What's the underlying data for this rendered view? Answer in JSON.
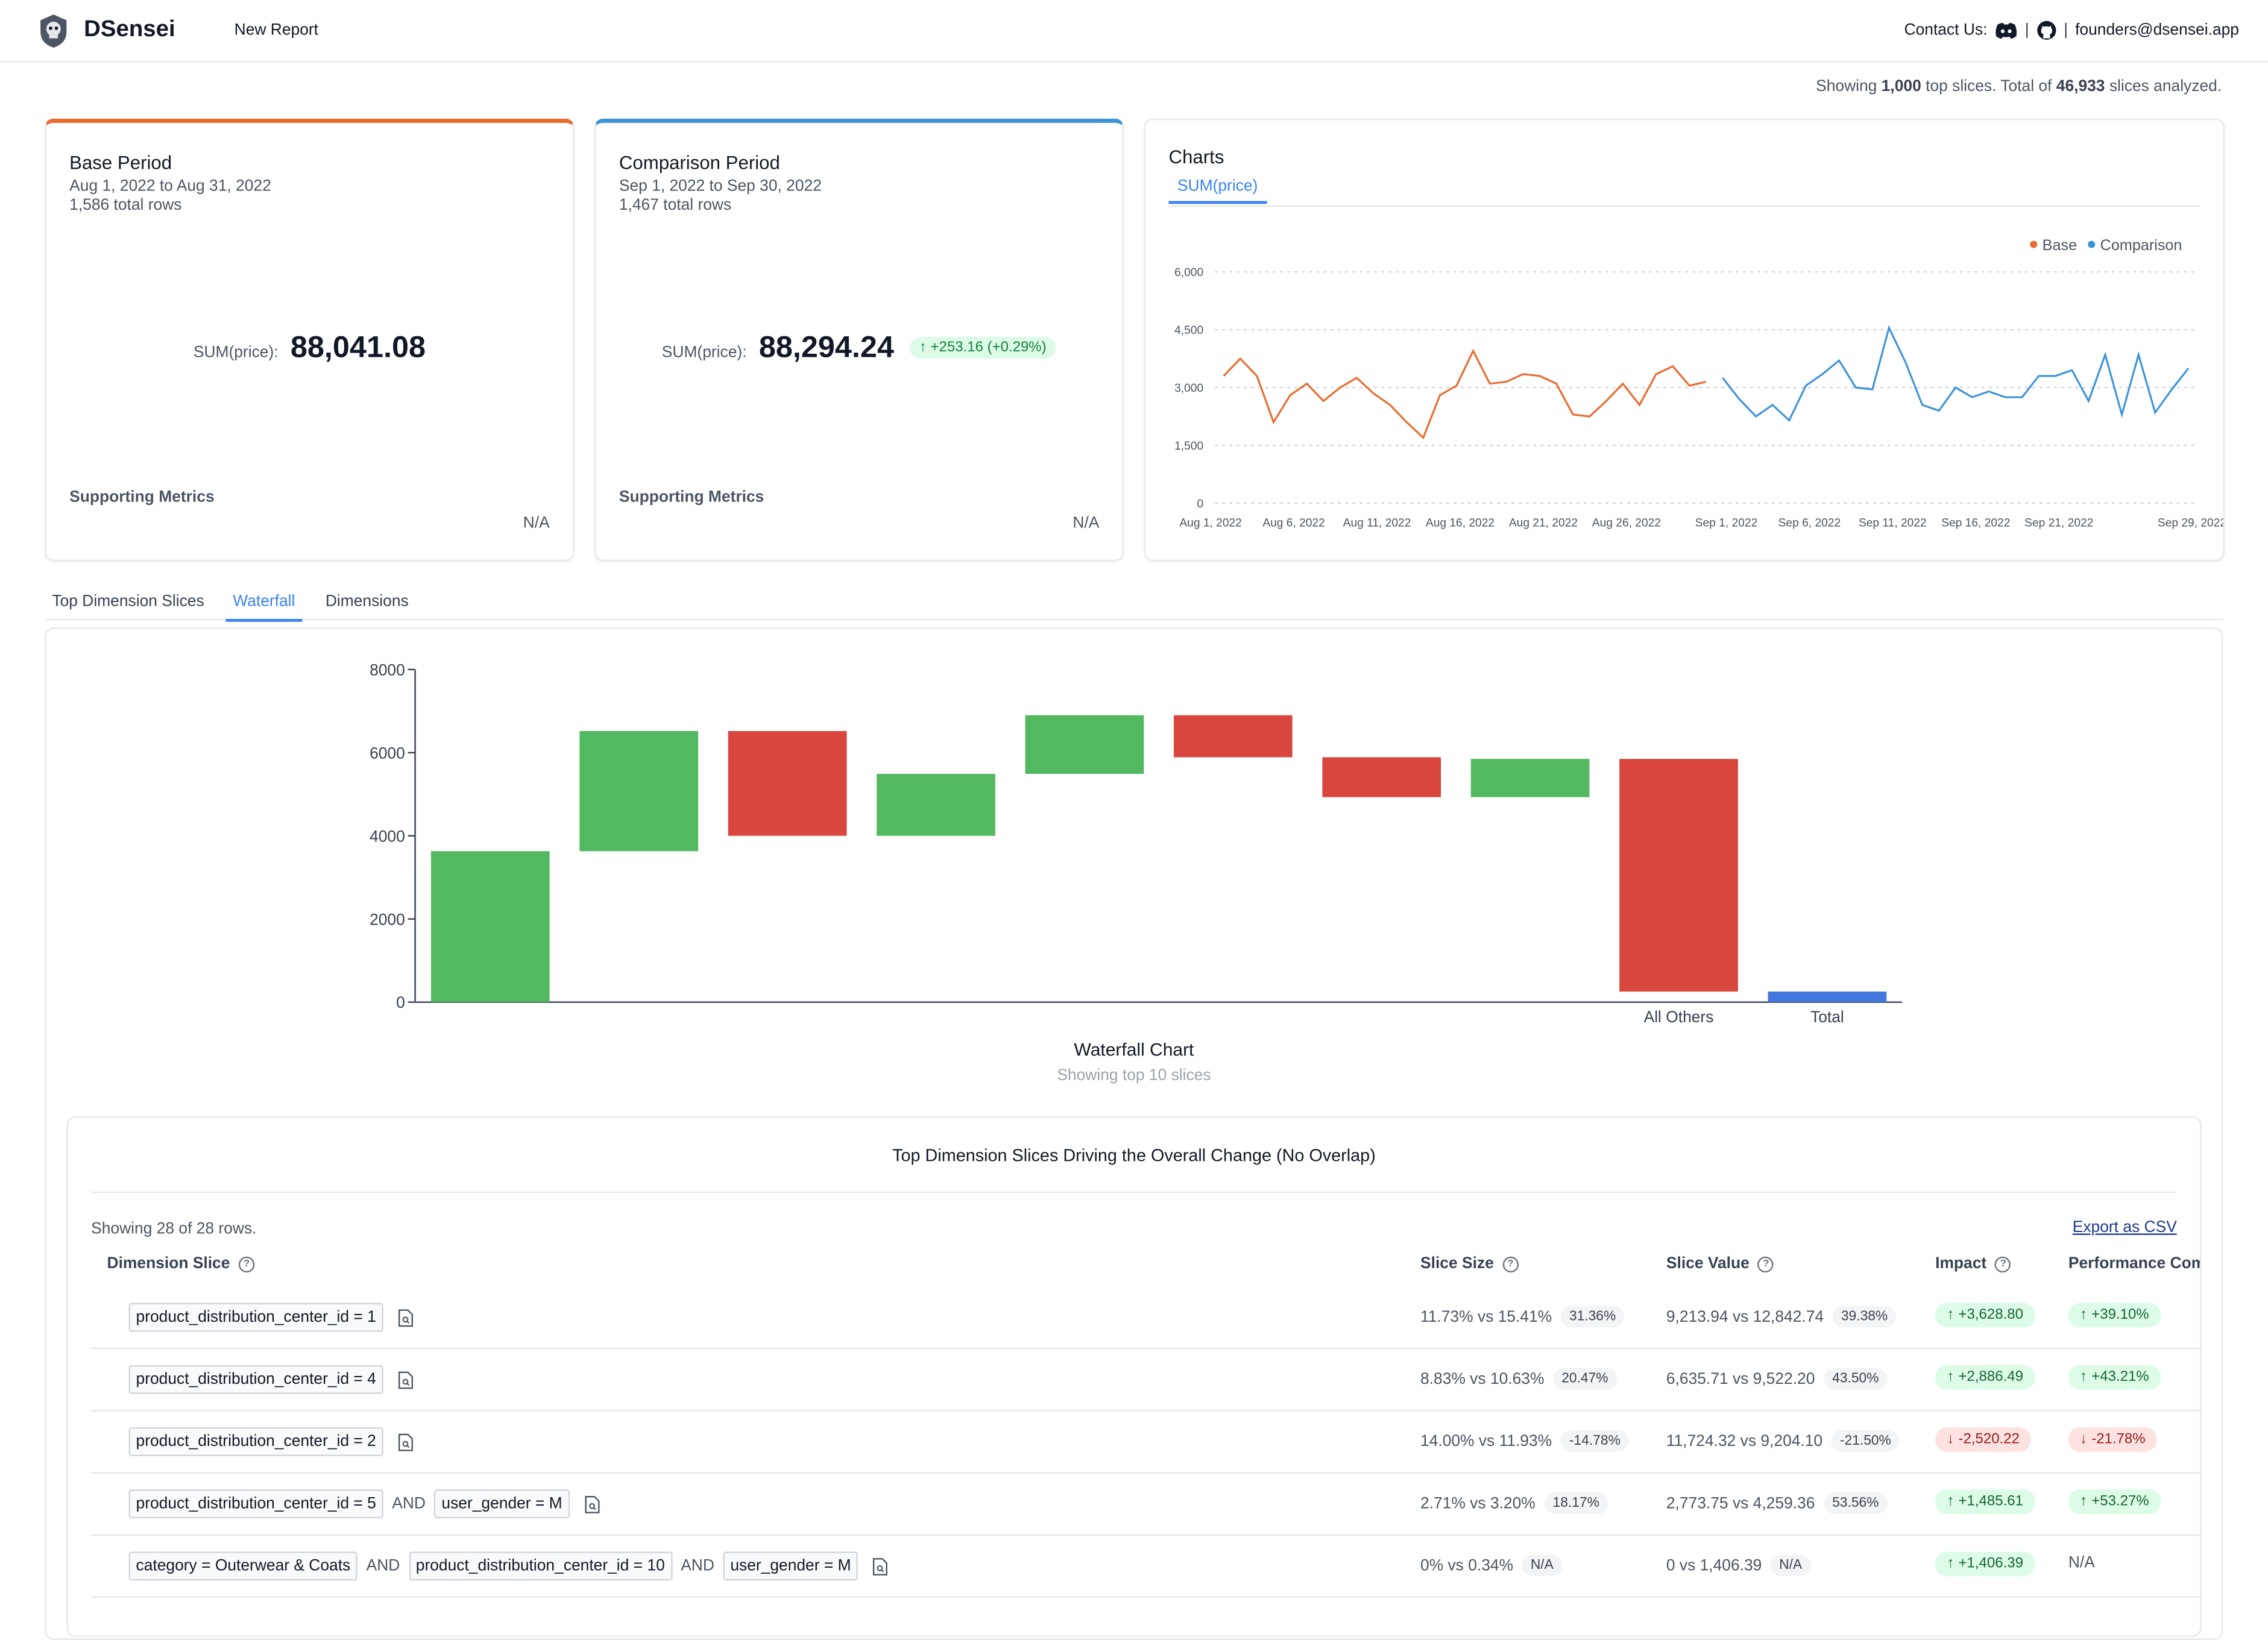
{
  "header": {
    "brand": "DSensei",
    "new_report": "New Report",
    "contact_label": "Contact Us:",
    "email": "founders@dsensei.app",
    "sep": "|"
  },
  "summary": {
    "prefix": "Showing ",
    "top_slices": "1,000",
    "middle": " top slices. Total of ",
    "total_slices": "46,933",
    "suffix": " slices analyzed."
  },
  "base_period": {
    "title": "Base Period",
    "range": "Aug 1, 2022 to Aug 31, 2022",
    "rows": "1,586 total rows",
    "metric_label": "SUM(price):",
    "metric_value": "88,041.08",
    "supporting": "Supporting Metrics",
    "na": "N/A"
  },
  "comparison_period": {
    "title": "Comparison Period",
    "range": "Sep 1, 2022 to Sep 30, 2022",
    "rows": "1,467 total rows",
    "metric_label": "SUM(price):",
    "metric_value": "88,294.24",
    "delta": "+253.16 (+0.29%)",
    "supporting": "Supporting Metrics",
    "na": "N/A"
  },
  "charts_card": {
    "title": "Charts",
    "tab": "SUM(price)"
  },
  "tabs": [
    "Top Dimension Slices",
    "Waterfall",
    "Dimensions"
  ],
  "active_tab": "Waterfall",
  "chart_data": [
    {
      "type": "line",
      "title": "",
      "legend": [
        "Base",
        "Comparison"
      ],
      "legend_position": "top-right",
      "colors": {
        "Base": "#ea6a2e",
        "Comparison": "#3b93d9"
      },
      "ylim": [
        0,
        6000
      ],
      "yticks": [
        "0",
        "1,500",
        "3,000",
        "4,500",
        "6,000"
      ],
      "xticks": [
        "Aug 1, 2022",
        "Aug 6, 2022",
        "Aug 11, 2022",
        "Aug 16, 2022",
        "Aug 21, 2022",
        "Aug 26, 2022",
        "Sep 1, 2022",
        "Sep 6, 2022",
        "Sep 11, 2022",
        "Sep 16, 2022",
        "Sep 21, 2022",
        "Sep 29, 2022"
      ],
      "grid": true,
      "series": [
        {
          "name": "Base",
          "values": [
            3300,
            3750,
            3300,
            2100,
            2800,
            3100,
            2650,
            3000,
            3250,
            2850,
            2550,
            2100,
            1700,
            2800,
            3050,
            3950,
            3100,
            3150,
            3350,
            3300,
            3100,
            2300,
            2250,
            2650,
            3100,
            2550,
            3350,
            3550,
            3050,
            3150
          ]
        },
        {
          "name": "Comparison",
          "values": [
            3250,
            2700,
            2250,
            2550,
            2150,
            3050,
            3350,
            3700,
            3000,
            2950,
            4550,
            3650,
            2550,
            2400,
            3000,
            2750,
            2900,
            2750,
            2750,
            3300,
            3300,
            3450,
            2650,
            3850,
            2300,
            3850,
            2350,
            2950,
            3500
          ]
        }
      ]
    },
    {
      "type": "bar",
      "subtype": "waterfall",
      "title": "Waterfall Chart",
      "subtitle": "Showing top 10 slices",
      "ylim": [
        0,
        8000
      ],
      "yticks": [
        "0",
        "2000",
        "4000",
        "6000",
        "8000"
      ],
      "categories": [
        "",
        "",
        "",
        "",
        "",
        "",
        "",
        "",
        "All Others",
        "Total"
      ],
      "colors": {
        "increase": "#52b961",
        "decrease": "#d9463d",
        "total": "#4477dd"
      },
      "bars": [
        {
          "start": 0,
          "end": 3630,
          "kind": "increase"
        },
        {
          "start": 3630,
          "end": 6520,
          "kind": "increase"
        },
        {
          "start": 6520,
          "end": 4000,
          "kind": "decrease"
        },
        {
          "start": 4000,
          "end": 5490,
          "kind": "increase"
        },
        {
          "start": 5490,
          "end": 6900,
          "kind": "increase"
        },
        {
          "start": 6900,
          "end": 5890,
          "kind": "decrease"
        },
        {
          "start": 5890,
          "end": 4930,
          "kind": "decrease"
        },
        {
          "start": 4930,
          "end": 5850,
          "kind": "increase"
        },
        {
          "start": 5850,
          "end": 253,
          "kind": "decrease"
        },
        {
          "start": 0,
          "end": 253,
          "kind": "total"
        }
      ]
    }
  ],
  "table": {
    "title": "Top Dimension Slices Driving the Overall Change (No Overlap)",
    "rows_info": "Showing 28 of 28 rows.",
    "export": "Export as CSV",
    "columns": {
      "dimension": "Dimension Slice",
      "size": "Slice Size",
      "value": "Slice Value",
      "impact": "Impact",
      "performance": "Performance Com"
    },
    "and_label": "AND",
    "rows": [
      {
        "conds": [
          "product_distribution_center_id = 1"
        ],
        "size": "11.73% vs 15.41%",
        "size_pill": "31.36%",
        "value": "9,213.94 vs 12,842.74",
        "value_pill": "39.38%",
        "impact": "+3,628.80",
        "impact_dir": "up",
        "perf": "+39.10%",
        "perf_dir": "up"
      },
      {
        "conds": [
          "product_distribution_center_id = 4"
        ],
        "size": "8.83% vs 10.63%",
        "size_pill": "20.47%",
        "value": "6,635.71 vs 9,522.20",
        "value_pill": "43.50%",
        "impact": "+2,886.49",
        "impact_dir": "up",
        "perf": "+43.21%",
        "perf_dir": "up"
      },
      {
        "conds": [
          "product_distribution_center_id = 2"
        ],
        "size": "14.00% vs 11.93%",
        "size_pill": "-14.78%",
        "value": "11,724.32 vs 9,204.10",
        "value_pill": "-21.50%",
        "impact": "-2,520.22",
        "impact_dir": "down",
        "perf": "-21.78%",
        "perf_dir": "down"
      },
      {
        "conds": [
          "product_distribution_center_id = 5",
          "user_gender = M"
        ],
        "size": "2.71% vs 3.20%",
        "size_pill": "18.17%",
        "value": "2,773.75 vs 4,259.36",
        "value_pill": "53.56%",
        "impact": "+1,485.61",
        "impact_dir": "up",
        "perf": "+53.27%",
        "perf_dir": "up"
      },
      {
        "conds": [
          "category = Outerwear & Coats",
          "product_distribution_center_id = 10",
          "user_gender = M"
        ],
        "size": "0% vs 0.34%",
        "size_pill": "N/A",
        "value": "0 vs 1,406.39",
        "value_pill": "N/A",
        "impact": "+1,406.39",
        "impact_dir": "up",
        "perf": "N/A",
        "perf_dir": "none"
      }
    ]
  }
}
